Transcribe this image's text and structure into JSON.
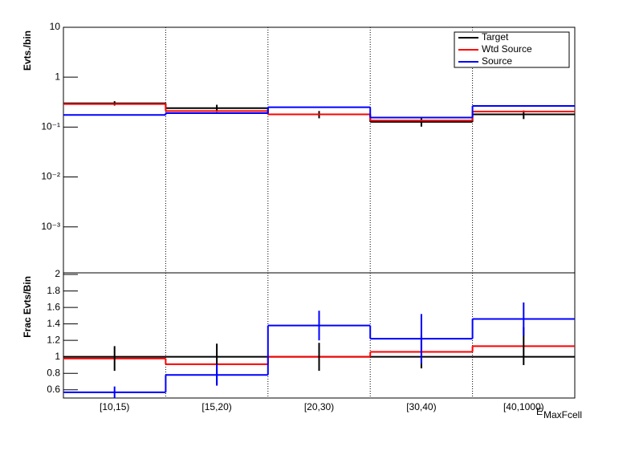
{
  "chart_data": [
    {
      "type": "step",
      "log_y": true,
      "y_label": "Evts./bin",
      "ylim": [
        0.00012,
        10
      ],
      "yticks": [
        {
          "value": 0.001,
          "label": "10⁻³"
        },
        {
          "value": 0.01,
          "label": "10⁻²"
        },
        {
          "value": 0.1,
          "label": "10⁻¹"
        },
        1,
        10
      ],
      "grid_x": true,
      "legend": "top-right",
      "series": [
        {
          "name": "Target",
          "color": "#000000",
          "values": [
            0.3,
            0.24,
            0.18,
            0.127,
            0.18
          ],
          "errors": [
            0.03,
            0.04,
            0.03,
            0.025,
            0.035
          ]
        },
        {
          "name": "Wtd Source",
          "color": "#ff0000",
          "values": [
            0.29,
            0.21,
            0.18,
            0.135,
            0.205
          ]
        },
        {
          "name": "Source",
          "color": "#0000ff",
          "values": [
            0.175,
            0.19,
            0.25,
            0.155,
            0.265
          ]
        }
      ]
    },
    {
      "type": "step",
      "log_y": false,
      "y_label": "Frac Evts/Bin",
      "x_label": "E",
      "x_label_sub": "MaxFcell",
      "categories": [
        "[10,15)",
        "[15,20)",
        "[20,30)",
        "[30,40)",
        "[40,1000)"
      ],
      "ylim": [
        0.5,
        2.02
      ],
      "yticks": [
        0.6,
        0.8,
        1,
        1.2,
        1.4,
        1.6,
        1.8,
        2
      ],
      "grid_x": true,
      "series": [
        {
          "name": "Target",
          "color": "#000000",
          "values": [
            1,
            1,
            1,
            1,
            1
          ]
        },
        {
          "name": "Wtd Source",
          "color": "#ff0000",
          "error_color": "#000000",
          "values": [
            0.98,
            0.91,
            1.0,
            1.06,
            1.13
          ],
          "errors": [
            0.15,
            0.25,
            0.17,
            0.2,
            0.23
          ]
        },
        {
          "name": "Source",
          "color": "#0000ff",
          "values": [
            0.57,
            0.78,
            1.38,
            1.22,
            1.46
          ],
          "errors": [
            0.07,
            0.13,
            0.18,
            0.3,
            0.2
          ]
        }
      ]
    }
  ]
}
